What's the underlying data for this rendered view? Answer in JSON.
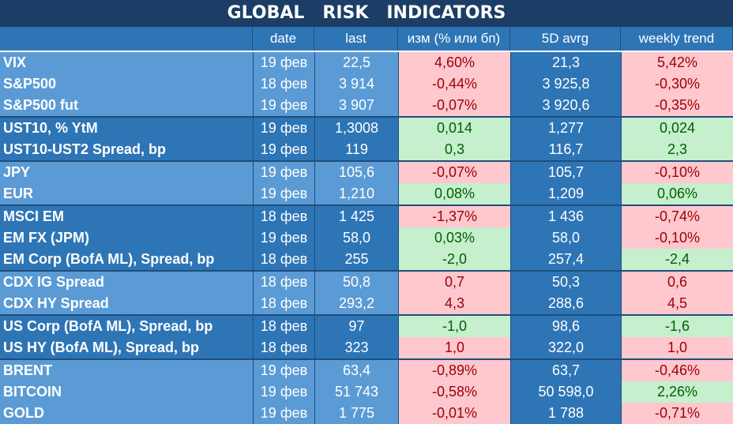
{
  "title": "GLOBAL   RISK   INDICATORS",
  "colors": {
    "title_bg": "#1c3d66",
    "header_bg": "#2e75b6",
    "light_bg": "#5b9bd5",
    "dark_bg": "#2e75b6",
    "positive_bg": "#c6efce",
    "positive_fg": "#006100",
    "negative_bg": "#ffc7ce",
    "negative_fg": "#9c0006"
  },
  "headers": {
    "date": "date",
    "last": "last",
    "change": "изм (% или бп)",
    "avg5d": "5D avrg",
    "weekly": "weekly trend"
  },
  "groups": [
    {
      "shade": "light",
      "rows": [
        {
          "name": "VIX",
          "date": "19 фев",
          "last": "22,5",
          "change": "4,60%",
          "change_sign": "neg",
          "avg5d": "21,3",
          "weekly": "5,42%",
          "weekly_sign": "neg"
        },
        {
          "name": "S&P500",
          "date": "18 фев",
          "last": "3 914",
          "change": "-0,44%",
          "change_sign": "neg",
          "avg5d": "3 925,8",
          "weekly": "-0,30%",
          "weekly_sign": "neg"
        },
        {
          "name": "S&P500 fut",
          "date": "19 фев",
          "last": "3 907",
          "change": "-0,07%",
          "change_sign": "neg",
          "avg5d": "3 920,6",
          "weekly": "-0,35%",
          "weekly_sign": "neg"
        }
      ]
    },
    {
      "shade": "dark",
      "rows": [
        {
          "name": "UST10, % YtM",
          "date": "19 фев",
          "last": "1,3008",
          "change": "0,014",
          "change_sign": "pos",
          "avg5d": "1,277",
          "weekly": "0,024",
          "weekly_sign": "pos"
        },
        {
          "name": "UST10-UST2 Spread, bp",
          "date": "19 фев",
          "last": "119",
          "change": "0,3",
          "change_sign": "pos",
          "avg5d": "116,7",
          "weekly": "2,3",
          "weekly_sign": "pos"
        }
      ]
    },
    {
      "shade": "light",
      "rows": [
        {
          "name": "JPY",
          "date": "19 фев",
          "last": "105,6",
          "change": "-0,07%",
          "change_sign": "neg",
          "avg5d": "105,7",
          "weekly": "-0,10%",
          "weekly_sign": "neg"
        },
        {
          "name": "EUR",
          "date": "19 фев",
          "last": "1,210",
          "change": "0,08%",
          "change_sign": "pos",
          "avg5d": "1,209",
          "weekly": "0,06%",
          "weekly_sign": "pos"
        }
      ]
    },
    {
      "shade": "dark",
      "rows": [
        {
          "name": "MSCI EM",
          "date": "18 фев",
          "last": "1 425",
          "change": "-1,37%",
          "change_sign": "neg",
          "avg5d": "1 436",
          "weekly": "-0,74%",
          "weekly_sign": "neg"
        },
        {
          "name": "EM FX (JPM)",
          "date": "19 фев",
          "last": "58,0",
          "change": "0,03%",
          "change_sign": "pos",
          "avg5d": "58,0",
          "weekly": "-0,10%",
          "weekly_sign": "neg"
        },
        {
          "name": "EM Corp (BofA ML), Spread, bp",
          "date": "18 фев",
          "last": "255",
          "change": "-2,0",
          "change_sign": "pos",
          "avg5d": "257,4",
          "weekly": "-2,4",
          "weekly_sign": "pos"
        }
      ]
    },
    {
      "shade": "light",
      "rows": [
        {
          "name": "CDX IG Spread",
          "date": "18 фев",
          "last": "50,8",
          "change": "0,7",
          "change_sign": "neg",
          "avg5d": "50,3",
          "weekly": "0,6",
          "weekly_sign": "neg"
        },
        {
          "name": "CDX HY Spread",
          "date": "18 фев",
          "last": "293,2",
          "change": "4,3",
          "change_sign": "neg",
          "avg5d": "288,6",
          "weekly": "4,5",
          "weekly_sign": "neg"
        }
      ]
    },
    {
      "shade": "dark",
      "rows": [
        {
          "name": "US Corp (BofA ML), Spread, bp",
          "date": "18 фев",
          "last": "97",
          "change": "-1,0",
          "change_sign": "pos",
          "avg5d": "98,6",
          "weekly": "-1,6",
          "weekly_sign": "pos"
        },
        {
          "name": "US HY (BofA ML), Spread, bp",
          "date": "18 фев",
          "last": "323",
          "change": "1,0",
          "change_sign": "neg",
          "avg5d": "322,0",
          "weekly": "1,0",
          "weekly_sign": "neg"
        }
      ]
    },
    {
      "shade": "light",
      "rows": [
        {
          "name": "BRENT",
          "date": "19 фев",
          "last": "63,4",
          "change": "-0,89%",
          "change_sign": "neg",
          "avg5d": "63,7",
          "weekly": "-0,46%",
          "weekly_sign": "neg"
        },
        {
          "name": "BITCOIN",
          "date": "19 фев",
          "last": "51 743",
          "change": "-0,58%",
          "change_sign": "neg",
          "avg5d": "50 598,0",
          "weekly": "2,26%",
          "weekly_sign": "pos"
        },
        {
          "name": "GOLD",
          "date": "19 фев",
          "last": "1 775",
          "change": "-0,01%",
          "change_sign": "neg",
          "avg5d": "1 788",
          "weekly": "-0,71%",
          "weekly_sign": "neg"
        }
      ]
    }
  ]
}
